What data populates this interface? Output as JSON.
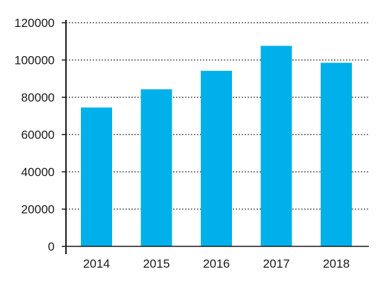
{
  "chart_data": {
    "type": "bar",
    "title": "",
    "xlabel": "",
    "ylabel": "",
    "categories": [
      "2014",
      "2015",
      "2016",
      "2017",
      "2018"
    ],
    "values": [
      74500,
      84300,
      94200,
      107600,
      98500
    ],
    "ylim": [
      0,
      120000
    ],
    "yticks": [
      0,
      20000,
      40000,
      60000,
      80000,
      100000,
      120000
    ],
    "ytick_labels": [
      "0",
      "20000",
      "40000",
      "60000",
      "80000",
      "100000",
      "120000"
    ],
    "grid": true,
    "legend": "none"
  },
  "colors": {
    "bar": "#00b0ea",
    "axis": "#1a1a1a",
    "grid": "#333333"
  }
}
